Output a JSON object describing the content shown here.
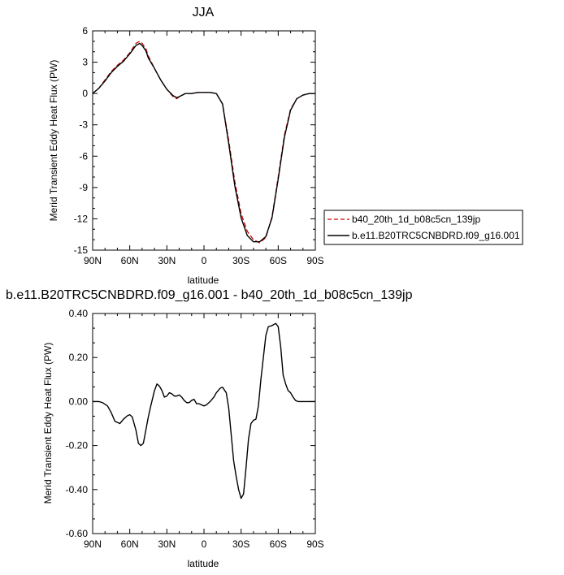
{
  "chart_data": [
    {
      "type": "line",
      "title": "JJA",
      "xlabel": "latitude",
      "ylabel": "Merid Transient Eddy Heat Flux (PW)",
      "xlim": [
        90,
        -90
      ],
      "ylim": [
        -15,
        6
      ],
      "x_ticks": [
        90,
        60,
        30,
        0,
        -30,
        -60,
        -90
      ],
      "x_tick_labels": [
        "90N",
        "60N",
        "30N",
        "0",
        "30S",
        "60S",
        "90S"
      ],
      "y_ticks": [
        6,
        3,
        0,
        -3,
        -6,
        -9,
        -12,
        -15
      ],
      "y_tick_labels": [
        "6",
        "3",
        "0",
        "-3",
        "-6",
        "-9",
        "-12",
        "-15"
      ],
      "legend_position": "right",
      "series": [
        {
          "name": "b40_20th_1d_b08c5cn_139jp",
          "color": "#cc0000",
          "dash": "dashed",
          "x": [
            90,
            85,
            80,
            75,
            70,
            65,
            60,
            55,
            52,
            50,
            47,
            45,
            40,
            35,
            30,
            25,
            22,
            20,
            15,
            10,
            5,
            0,
            -5,
            -10,
            -15,
            -20,
            -25,
            -30,
            -35,
            -40,
            -45,
            -47,
            -50,
            -55,
            -60,
            -65,
            -70,
            -75,
            -80,
            -85,
            -90
          ],
          "y": [
            0.0,
            0.5,
            1.3,
            2.1,
            2.7,
            3.2,
            3.9,
            4.8,
            5.0,
            4.8,
            4.3,
            3.6,
            2.4,
            1.3,
            0.4,
            -0.3,
            -0.5,
            -0.3,
            0.0,
            0.0,
            0.1,
            0.1,
            0.1,
            0.0,
            -1.0,
            -4.5,
            -8.5,
            -11.5,
            -13.2,
            -14.0,
            -14.3,
            -14.1,
            -13.8,
            -11.8,
            -8.0,
            -4.0,
            -1.5,
            -0.5,
            -0.15,
            0.0,
            0.0
          ]
        },
        {
          "name": "b.e11.B20TRC5CNBDRD.f09_g16.001",
          "color": "#000000",
          "dash": "solid",
          "x": [
            90,
            85,
            80,
            75,
            70,
            65,
            60,
            55,
            52,
            50,
            47,
            45,
            40,
            35,
            30,
            25,
            22,
            20,
            15,
            10,
            5,
            0,
            -5,
            -10,
            -15,
            -20,
            -25,
            -30,
            -35,
            -40,
            -45,
            -47,
            -50,
            -55,
            -60,
            -65,
            -70,
            -75,
            -80,
            -85,
            -90
          ],
          "y": [
            0.0,
            0.5,
            1.2,
            2.0,
            2.6,
            3.1,
            3.8,
            4.6,
            4.8,
            4.6,
            4.1,
            3.4,
            2.4,
            1.3,
            0.4,
            -0.2,
            -0.4,
            -0.3,
            0.0,
            0.0,
            0.1,
            0.1,
            0.1,
            0.0,
            -1.0,
            -4.8,
            -8.9,
            -11.9,
            -13.6,
            -14.2,
            -14.2,
            -14.0,
            -13.7,
            -11.9,
            -8.2,
            -4.2,
            -1.6,
            -0.5,
            -0.15,
            0.0,
            0.0
          ]
        }
      ]
    },
    {
      "type": "line",
      "title": "b.e11.B20TRC5CNBDRD.f09_g16.001 - b40_20th_1d_b08c5cn_139jp",
      "xlabel": "latitude",
      "ylabel": "Merid Transient Eddy Heat Flux (PW)",
      "xlim": [
        90,
        -90
      ],
      "ylim": [
        -0.6,
        0.4
      ],
      "x_ticks": [
        90,
        60,
        30,
        0,
        -30,
        -60,
        -90
      ],
      "x_tick_labels": [
        "90N",
        "60N",
        "30N",
        "0",
        "30S",
        "60S",
        "90S"
      ],
      "y_ticks": [
        0.4,
        0.2,
        0.0,
        -0.2,
        -0.4,
        -0.6
      ],
      "y_tick_labels": [
        "0.40",
        "0.20",
        "0.00",
        "-0.20",
        "-0.40",
        "-0.60"
      ],
      "series": [
        {
          "color": "#000000",
          "dash": "solid",
          "x": [
            90,
            85,
            82,
            78,
            75,
            72,
            70,
            68,
            65,
            62,
            60,
            58,
            55,
            53,
            51,
            49,
            47,
            45,
            43,
            40,
            38,
            36,
            34,
            32,
            30,
            28,
            26,
            24,
            22,
            20,
            18,
            16,
            14,
            12,
            10,
            8,
            6,
            4,
            2,
            0,
            -2,
            -5,
            -8,
            -10,
            -13,
            -15,
            -18,
            -20,
            -22,
            -24,
            -26,
            -28,
            -30,
            -32,
            -34,
            -36,
            -38,
            -40,
            -42,
            -44,
            -46,
            -48,
            -50,
            -52,
            -55,
            -58,
            -60,
            -62,
            -64,
            -66,
            -68,
            -70,
            -72,
            -74,
            -76,
            -78,
            -80,
            -82,
            -84,
            -86,
            -88,
            -90
          ],
          "y": [
            0.0,
            0.0,
            -0.005,
            -0.02,
            -0.05,
            -0.09,
            -0.095,
            -0.1,
            -0.08,
            -0.065,
            -0.06,
            -0.07,
            -0.13,
            -0.19,
            -0.2,
            -0.19,
            -0.13,
            -0.07,
            -0.02,
            0.05,
            0.08,
            0.07,
            0.05,
            0.02,
            0.025,
            0.04,
            0.035,
            0.025,
            0.025,
            0.03,
            0.02,
            0.005,
            -0.005,
            -0.005,
            0.005,
            0.01,
            -0.01,
            -0.01,
            -0.015,
            -0.02,
            -0.015,
            0.0,
            0.02,
            0.04,
            0.06,
            0.065,
            0.04,
            -0.03,
            -0.15,
            -0.27,
            -0.34,
            -0.4,
            -0.44,
            -0.42,
            -0.3,
            -0.17,
            -0.1,
            -0.085,
            -0.08,
            -0.02,
            0.1,
            0.2,
            0.3,
            0.34,
            0.345,
            0.355,
            0.34,
            0.25,
            0.12,
            0.08,
            0.05,
            0.04,
            0.02,
            0.005,
            0.0,
            0.0,
            0.0,
            0.0,
            0.0,
            0.0,
            0.0,
            0.0
          ]
        }
      ]
    }
  ]
}
